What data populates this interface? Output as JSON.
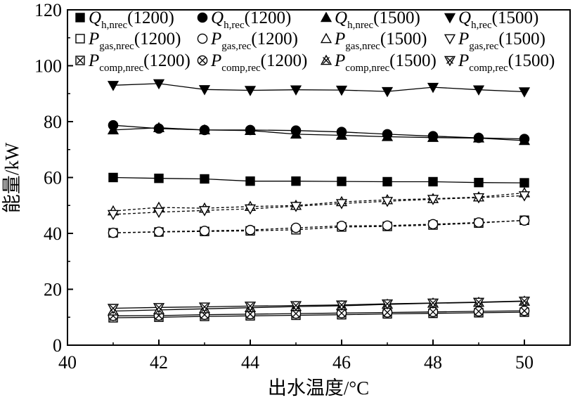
{
  "chart_data": {
    "type": "line",
    "title": "",
    "xlabel": "出水温度/°C",
    "ylabel": "能量/kW",
    "xlim": [
      40,
      51
    ],
    "ylim": [
      0,
      120
    ],
    "xticks": [
      "40",
      "42",
      "44",
      "46",
      "48",
      "50"
    ],
    "yticks": [
      "0",
      "20",
      "40",
      "60",
      "80",
      "100",
      "120"
    ],
    "grid": false,
    "legend_position": "top",
    "x": [
      41,
      42,
      43,
      44,
      45,
      46,
      47,
      48,
      49,
      50
    ],
    "series": [
      {
        "name": "Q_h,nrec(1200)",
        "sym": "Q",
        "sub": "h,nrec",
        "rpm": "(1200)",
        "marker": "square-filled",
        "dash": false,
        "values": [
          60,
          59.7,
          59.5,
          58.7,
          58.7,
          58.6,
          58.5,
          58.5,
          58.2,
          58.1
        ]
      },
      {
        "name": "Q_h,rec(1200)",
        "sym": "Q",
        "sub": "h,rec",
        "rpm": "(1200)",
        "marker": "circle-filled",
        "dash": false,
        "values": [
          78.7,
          77.5,
          77,
          77,
          76.8,
          76.3,
          75.5,
          74.8,
          74.2,
          73.8
        ]
      },
      {
        "name": "Q_h,nrec(1500)",
        "sym": "Q",
        "sub": "h,nrec",
        "rpm": "(1500)",
        "marker": "triangle-up-filled",
        "dash": false,
        "values": [
          77,
          77.8,
          77,
          76.8,
          75.5,
          75.1,
          74.6,
          74.3,
          74.1,
          73.2
        ]
      },
      {
        "name": "Q_h,rec(1500)",
        "sym": "Q",
        "sub": "h,rec",
        "rpm": "(1500)",
        "marker": "triangle-down-filled",
        "dash": false,
        "values": [
          93,
          93.6,
          91.5,
          91.2,
          91.4,
          91.3,
          90.8,
          92.3,
          91.4,
          90.7
        ]
      },
      {
        "name": "P_gas,nrec(1200)",
        "sym": "P",
        "sub": "gas,nrec",
        "rpm": "(1200)",
        "marker": "square-open",
        "dash": true,
        "values": [
          40.2,
          40.5,
          40.7,
          40.9,
          41.3,
          42.3,
          42.5,
          43,
          43.7,
          44.7
        ]
      },
      {
        "name": "P_gas,rec(1200)",
        "sym": "P",
        "sub": "gas,rec",
        "rpm": "(1200)",
        "marker": "circle-open",
        "dash": true,
        "values": [
          40.2,
          40.6,
          40.9,
          41.2,
          42,
          42.7,
          42.8,
          43.3,
          43.9,
          44.6
        ]
      },
      {
        "name": "P_gas,nrec(1500)",
        "sym": "P",
        "sub": "gas,nrec",
        "rpm": "(1500)",
        "marker": "triangle-up-open",
        "dash": true,
        "values": [
          48,
          49.3,
          49,
          49.6,
          50,
          51.3,
          52,
          52.4,
          53,
          54.5
        ]
      },
      {
        "name": "P_gas,rec(1500)",
        "sym": "P",
        "sub": "gas,rec",
        "rpm": "(1500)",
        "marker": "triangle-down-open",
        "dash": true,
        "values": [
          46.8,
          47.6,
          48.2,
          48.8,
          49.7,
          50.7,
          51.5,
          52.2,
          52.8,
          53.5
        ]
      },
      {
        "name": "P_comp,nrec(1200)",
        "sym": "P",
        "sub": "comp,nrec",
        "rpm": "(1200)",
        "marker": "square-x",
        "dash": false,
        "values": [
          9.8,
          10,
          10.3,
          10.5,
          10.7,
          10.9,
          11.2,
          11.4,
          11.6,
          11.8
        ]
      },
      {
        "name": "P_comp,rec(1200)",
        "sym": "P",
        "sub": "comp,rec",
        "rpm": "(1200)",
        "marker": "circle-x",
        "dash": false,
        "values": [
          10.5,
          10.6,
          10.9,
          11.1,
          11.3,
          11.5,
          11.7,
          11.9,
          12.1,
          12.3
        ]
      },
      {
        "name": "P_comp,nrec(1500)",
        "sym": "P",
        "sub": "comp,nrec",
        "rpm": "(1500)",
        "marker": "triangle-up-x",
        "dash": false,
        "values": [
          12.2,
          12.6,
          13,
          13.4,
          13.8,
          14.1,
          14.6,
          15,
          15.3,
          15.7
        ]
      },
      {
        "name": "P_comp,rec(1500)",
        "sym": "P",
        "sub": "comp,rec",
        "rpm": "(1500)",
        "marker": "triangle-down-x",
        "dash": false,
        "values": [
          13.2,
          13.5,
          13.7,
          14,
          14.2,
          14.4,
          14.8,
          15.1,
          15.4,
          15.8
        ]
      }
    ]
  }
}
